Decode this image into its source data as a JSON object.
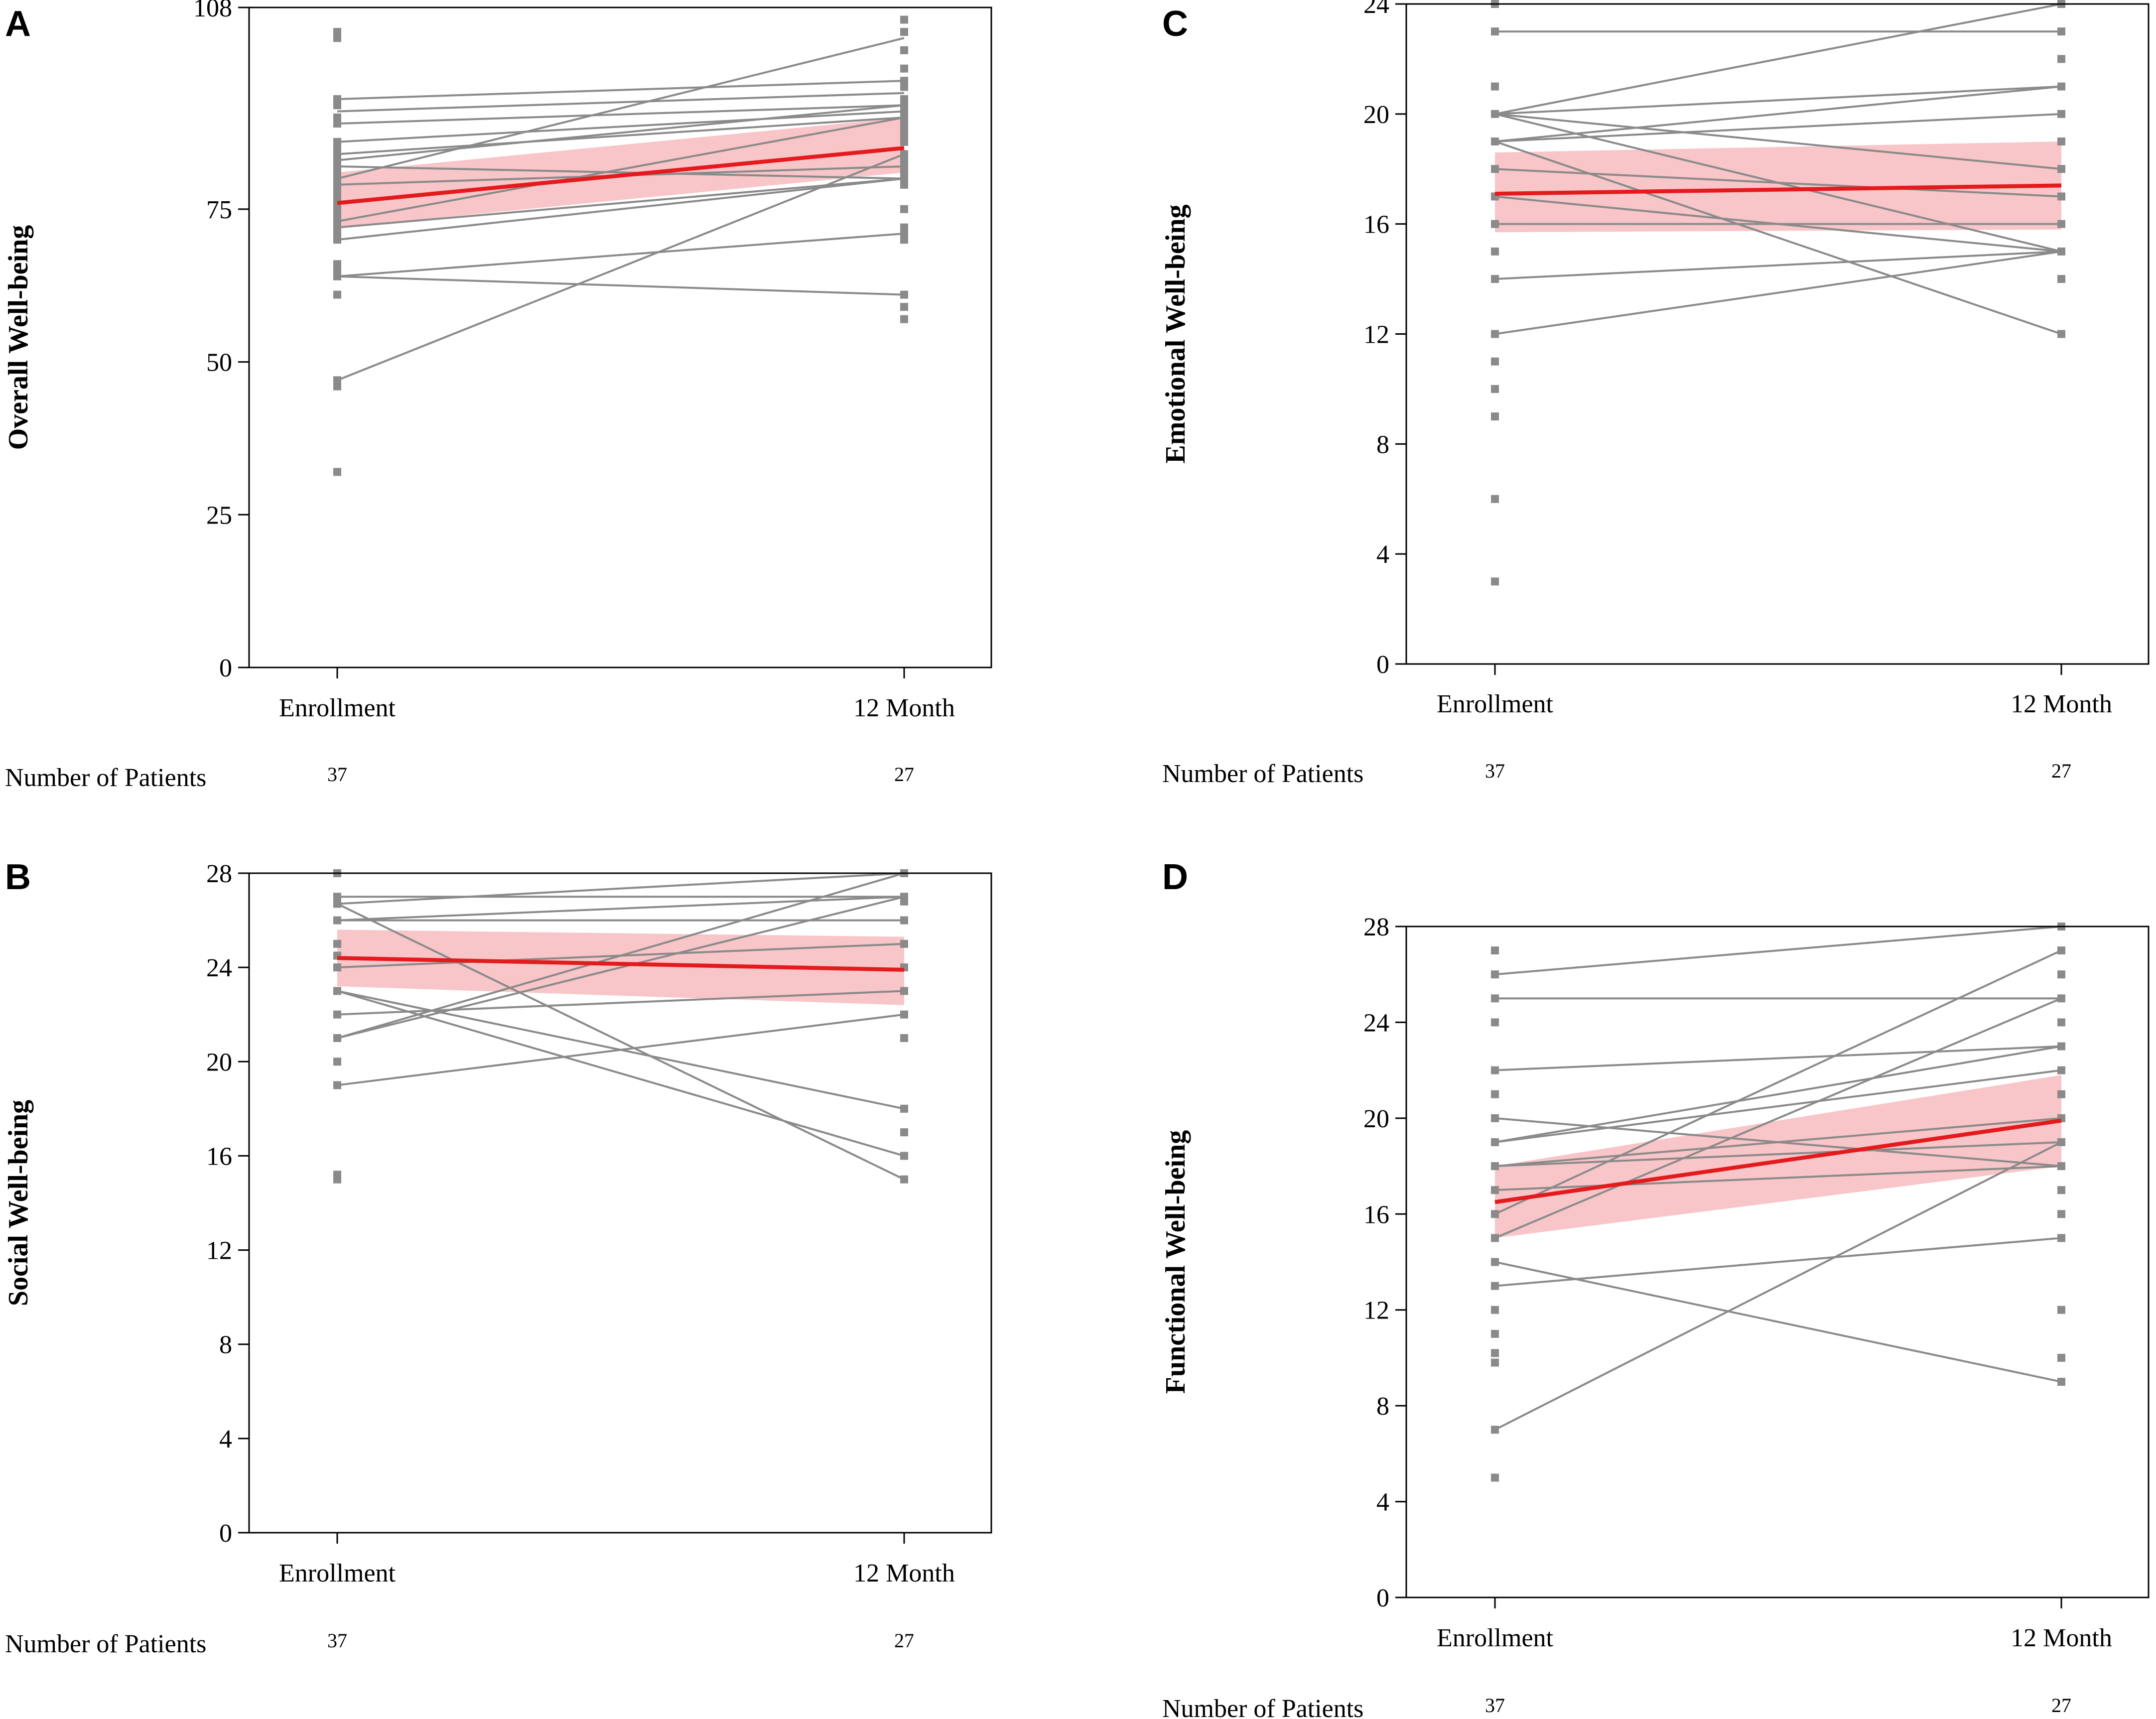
{
  "colors": {
    "trajectory": "#8a8a8a",
    "point": "#8a8a8a",
    "mean_line": "#e41a1c",
    "ci_band": "#f4a6aa",
    "axis": "#000000"
  },
  "chart_data": [
    {
      "panel": "A",
      "type": "line",
      "ylabel": "Overall Well-being",
      "categories": [
        "Enrollment",
        "12 Month"
      ],
      "ylim": [
        0,
        108
      ],
      "yticks": [
        0,
        25,
        50,
        75,
        108
      ],
      "number_of_patients_label": "Number of Patients",
      "patient_counts": [
        "37",
        "27"
      ],
      "individual_lines": [
        [
          93,
          96
        ],
        [
          91,
          94
        ],
        [
          89,
          92
        ],
        [
          86,
          91
        ],
        [
          84,
          90
        ],
        [
          83,
          92
        ],
        [
          82,
          80
        ],
        [
          80,
          103
        ],
        [
          79,
          82
        ],
        [
          73,
          90
        ],
        [
          72,
          80
        ],
        [
          70,
          80
        ],
        [
          64,
          71
        ],
        [
          64,
          61
        ],
        [
          47,
          84
        ]
      ],
      "enrollment_points": [
        104,
        103,
        93,
        92,
        90,
        89,
        86,
        85,
        84,
        83,
        82,
        81,
        80,
        79,
        78,
        77,
        76,
        75,
        74,
        73,
        72,
        71,
        70,
        66,
        65,
        64,
        61,
        47,
        46,
        32
      ],
      "month12_points": [
        106,
        104,
        101,
        98,
        96,
        95,
        93,
        92,
        91,
        90,
        89,
        88,
        87,
        86,
        84,
        83,
        82,
        81,
        80,
        79,
        75,
        72,
        71,
        70,
        61,
        59,
        57
      ],
      "mean_line": [
        76,
        85
      ],
      "ci_lower": [
        72,
        81
      ],
      "ci_upper": [
        81,
        90
      ]
    },
    {
      "panel": "B",
      "type": "line",
      "ylabel": "Social Well-being",
      "categories": [
        "Enrollment",
        "12 Month"
      ],
      "ylim": [
        0,
        28
      ],
      "yticks": [
        0,
        4,
        8,
        12,
        16,
        20,
        24,
        28
      ],
      "number_of_patients_label": "Number of Patients",
      "patient_counts": [
        "37",
        "27"
      ],
      "individual_lines": [
        [
          27,
          27
        ],
        [
          26.7,
          28
        ],
        [
          26.7,
          15
        ],
        [
          26,
          26
        ],
        [
          26,
          27
        ],
        [
          24,
          25
        ],
        [
          23,
          18
        ],
        [
          23,
          16
        ],
        [
          22,
          23
        ],
        [
          21,
          27
        ],
        [
          21,
          28
        ],
        [
          19,
          22
        ]
      ],
      "enrollment_points": [
        28,
        27,
        26.7,
        26,
        25,
        24.5,
        24,
        23,
        22,
        21,
        20,
        19,
        15.2,
        15
      ],
      "month12_points": [
        28,
        27,
        26.8,
        26,
        25,
        24,
        23,
        22,
        21,
        18,
        17,
        16,
        15
      ],
      "mean_line": [
        24.4,
        23.9
      ],
      "ci_lower": [
        23.2,
        22.4
      ],
      "ci_upper": [
        25.6,
        25.3
      ]
    },
    {
      "panel": "C",
      "type": "line",
      "ylabel": "Emotional Well-being",
      "categories": [
        "Enrollment",
        "12 Month"
      ],
      "ylim": [
        0,
        24
      ],
      "yticks": [
        0,
        4,
        8,
        12,
        16,
        20,
        24
      ],
      "number_of_patients_label": "Number of Patients",
      "patient_counts": [
        "37",
        "27"
      ],
      "individual_lines": [
        [
          23,
          23
        ],
        [
          20,
          24
        ],
        [
          20,
          21
        ],
        [
          20,
          18
        ],
        [
          20,
          15
        ],
        [
          19,
          20
        ],
        [
          19,
          21
        ],
        [
          19,
          12
        ],
        [
          18,
          17
        ],
        [
          17,
          15
        ],
        [
          16,
          16
        ],
        [
          14,
          15
        ],
        [
          12,
          15
        ]
      ],
      "enrollment_points": [
        24,
        23,
        21,
        20,
        19,
        18,
        17,
        16,
        15,
        14,
        12,
        11,
        10,
        9,
        6,
        3
      ],
      "month12_points": [
        24,
        23,
        22,
        21,
        20,
        19,
        18,
        17,
        16,
        15,
        14,
        12
      ],
      "mean_line": [
        17.1,
        17.4
      ],
      "ci_lower": [
        15.7,
        15.8
      ],
      "ci_upper": [
        18.6,
        19.0
      ]
    },
    {
      "panel": "D",
      "type": "line",
      "ylabel": "Functional Well-being",
      "categories": [
        "Enrollment",
        "12 Month"
      ],
      "ylim": [
        0,
        28
      ],
      "yticks": [
        0,
        4,
        8,
        12,
        16,
        20,
        24,
        28
      ],
      "number_of_patients_label": "Number of Patients",
      "patient_counts": [
        "37",
        "27"
      ],
      "individual_lines": [
        [
          26,
          28
        ],
        [
          25,
          25
        ],
        [
          22,
          23
        ],
        [
          20,
          18
        ],
        [
          19,
          22
        ],
        [
          19,
          23
        ],
        [
          18,
          19
        ],
        [
          18,
          20
        ],
        [
          17,
          18
        ],
        [
          16,
          27
        ],
        [
          15,
          25
        ],
        [
          14,
          9
        ],
        [
          13,
          15
        ],
        [
          7,
          19
        ]
      ],
      "enrollment_points": [
        27,
        26,
        25,
        24,
        22,
        21,
        20,
        19,
        18,
        17,
        16,
        15,
        14,
        13,
        12,
        11,
        10.2,
        9.8,
        7,
        5
      ],
      "month12_points": [
        28,
        27,
        26,
        25,
        24,
        23,
        22,
        21,
        20,
        19,
        18,
        17,
        16,
        15,
        12,
        10,
        9
      ],
      "mean_line": [
        16.5,
        19.9
      ],
      "ci_lower": [
        15.0,
        18.0
      ],
      "ci_upper": [
        18.0,
        21.8
      ]
    }
  ]
}
